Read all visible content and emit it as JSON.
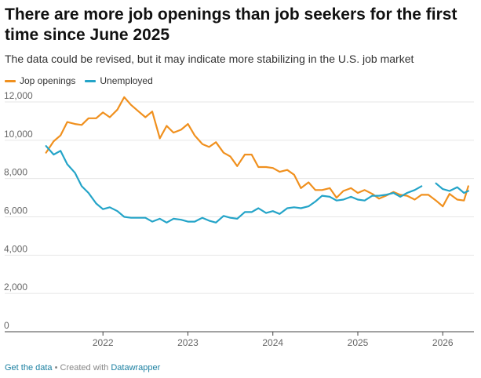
{
  "header": {
    "title": "There are more job openings than job seekers for the first time since June 2025",
    "subtitle": "The data could be revised, but it may indicate more stabilizing in the U.S. job market"
  },
  "footer": {
    "get_data": "Get the data",
    "separator": " • Created with ",
    "credit": "Datawrapper"
  },
  "colors": {
    "openings": "#f0901e",
    "unemployed": "#24a4c8",
    "grid": "#e6e6e6",
    "axis": "#444444"
  },
  "chart_data": {
    "type": "line",
    "x_unit": "year (decimal)",
    "xlim": [
      2021.25,
      2026.33
    ],
    "ylim": [
      0,
      12000
    ],
    "yticks": [
      0,
      2000,
      4000,
      6000,
      8000,
      10000,
      12000
    ],
    "ytick_labels": [
      "0",
      "2,000",
      "4,000",
      "6,000",
      "8,000",
      "10,000",
      "12,000"
    ],
    "xticks": [
      2022,
      2023,
      2024,
      2025,
      2026
    ],
    "xtick_labels": [
      "2022",
      "2023",
      "2024",
      "2025",
      "2026"
    ],
    "grid": true,
    "legend": "top-left",
    "series": [
      {
        "name": "Jop openings",
        "points": [
          [
            2021.33,
            9350
          ],
          [
            2021.42,
            9950
          ],
          [
            2021.5,
            10250
          ],
          [
            2021.58,
            10950
          ],
          [
            2021.67,
            10850
          ],
          [
            2021.75,
            10800
          ],
          [
            2021.83,
            11150
          ],
          [
            2021.92,
            11150
          ],
          [
            2022.0,
            11450
          ],
          [
            2022.08,
            11200
          ],
          [
            2022.17,
            11600
          ],
          [
            2022.25,
            12250
          ],
          [
            2022.33,
            11850
          ],
          [
            2022.42,
            11500
          ],
          [
            2022.5,
            11200
          ],
          [
            2022.58,
            11500
          ],
          [
            2022.67,
            10100
          ],
          [
            2022.75,
            10750
          ],
          [
            2022.83,
            10400
          ],
          [
            2022.92,
            10550
          ],
          [
            2023.0,
            10850
          ],
          [
            2023.08,
            10250
          ],
          [
            2023.17,
            9800
          ],
          [
            2023.25,
            9650
          ],
          [
            2023.33,
            9900
          ],
          [
            2023.42,
            9350
          ],
          [
            2023.5,
            9150
          ],
          [
            2023.58,
            8650
          ],
          [
            2023.67,
            9250
          ],
          [
            2023.75,
            9250
          ],
          [
            2023.83,
            8600
          ],
          [
            2023.92,
            8600
          ],
          [
            2024.0,
            8550
          ],
          [
            2024.08,
            8350
          ],
          [
            2024.17,
            8450
          ],
          [
            2024.25,
            8200
          ],
          [
            2024.33,
            7500
          ],
          [
            2024.42,
            7800
          ],
          [
            2024.5,
            7400
          ],
          [
            2024.58,
            7400
          ],
          [
            2024.67,
            7500
          ],
          [
            2024.75,
            7000
          ],
          [
            2024.83,
            7350
          ],
          [
            2024.92,
            7500
          ],
          [
            2025.0,
            7250
          ],
          [
            2025.08,
            7400
          ],
          [
            2025.17,
            7200
          ],
          [
            2025.25,
            6950
          ],
          [
            2025.33,
            7100
          ],
          [
            2025.42,
            7300
          ],
          [
            2025.5,
            7150
          ],
          [
            2025.58,
            7100
          ],
          [
            2025.67,
            6900
          ],
          [
            2025.75,
            7150
          ],
          [
            2025.83,
            7150
          ],
          [
            2025.92,
            6850
          ],
          [
            2026.0,
            6550
          ],
          [
            2026.08,
            7200
          ],
          [
            2026.17,
            6900
          ],
          [
            2026.25,
            6850
          ],
          [
            2026.3,
            7600
          ]
        ]
      },
      {
        "name": "Unemployed",
        "points": [
          [
            2021.33,
            9700
          ],
          [
            2021.42,
            9250
          ],
          [
            2021.5,
            9450
          ],
          [
            2021.58,
            8750
          ],
          [
            2021.67,
            8300
          ],
          [
            2021.75,
            7600
          ],
          [
            2021.83,
            7250
          ],
          [
            2021.92,
            6700
          ],
          [
            2022.0,
            6400
          ],
          [
            2022.08,
            6500
          ],
          [
            2022.17,
            6300
          ],
          [
            2022.25,
            6000
          ],
          [
            2022.33,
            5950
          ],
          [
            2022.42,
            5950
          ],
          [
            2022.5,
            5950
          ],
          [
            2022.58,
            5750
          ],
          [
            2022.67,
            5900
          ],
          [
            2022.75,
            5700
          ],
          [
            2022.83,
            5900
          ],
          [
            2022.92,
            5850
          ],
          [
            2023.0,
            5750
          ],
          [
            2023.08,
            5750
          ],
          [
            2023.17,
            5950
          ],
          [
            2023.25,
            5800
          ],
          [
            2023.33,
            5700
          ],
          [
            2023.42,
            6050
          ],
          [
            2023.5,
            5950
          ],
          [
            2023.58,
            5900
          ],
          [
            2023.67,
            6250
          ],
          [
            2023.75,
            6250
          ],
          [
            2023.83,
            6450
          ],
          [
            2023.92,
            6200
          ],
          [
            2024.0,
            6300
          ],
          [
            2024.08,
            6150
          ],
          [
            2024.17,
            6450
          ],
          [
            2024.25,
            6500
          ],
          [
            2024.33,
            6450
          ],
          [
            2024.42,
            6550
          ],
          [
            2024.5,
            6800
          ],
          [
            2024.58,
            7100
          ],
          [
            2024.67,
            7050
          ],
          [
            2024.75,
            6850
          ],
          [
            2024.83,
            6900
          ],
          [
            2024.92,
            7050
          ],
          [
            2025.0,
            6900
          ],
          [
            2025.08,
            6850
          ],
          [
            2025.17,
            7100
          ],
          [
            2025.25,
            7100
          ],
          [
            2025.33,
            7150
          ],
          [
            2025.42,
            7250
          ],
          [
            2025.5,
            7050
          ],
          [
            2025.58,
            7250
          ],
          [
            2025.67,
            7400
          ],
          [
            2025.75,
            7600
          ],
          null,
          [
            2025.92,
            7750
          ],
          [
            2026.0,
            7450
          ],
          [
            2026.08,
            7350
          ],
          [
            2026.17,
            7550
          ],
          [
            2026.25,
            7250
          ],
          [
            2026.3,
            7350
          ]
        ]
      }
    ]
  }
}
